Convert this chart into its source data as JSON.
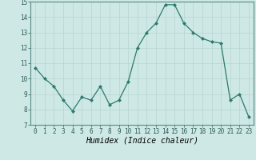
{
  "x": [
    0,
    1,
    2,
    3,
    4,
    5,
    6,
    7,
    8,
    9,
    10,
    11,
    12,
    13,
    14,
    15,
    16,
    17,
    18,
    19,
    20,
    21,
    22,
    23
  ],
  "y": [
    10.7,
    10.0,
    9.5,
    8.6,
    7.9,
    8.8,
    8.6,
    9.5,
    8.3,
    8.6,
    9.8,
    12.0,
    13.0,
    13.6,
    14.8,
    14.8,
    13.6,
    13.0,
    12.6,
    12.4,
    12.3,
    8.6,
    9.0,
    7.5
  ],
  "line_color": "#2d7a6e",
  "bg_color": "#cde8e5",
  "grid_color_major": "#b8d4d0",
  "grid_color_minor": "#c8e0dc",
  "xlabel": "Humidex (Indice chaleur)",
  "ylim": [
    7,
    15
  ],
  "xlim": [
    -0.5,
    23.5
  ],
  "yticks": [
    7,
    8,
    9,
    10,
    11,
    12,
    13,
    14,
    15
  ],
  "xticks": [
    0,
    1,
    2,
    3,
    4,
    5,
    6,
    7,
    8,
    9,
    10,
    11,
    12,
    13,
    14,
    15,
    16,
    17,
    18,
    19,
    20,
    21,
    22,
    23
  ],
  "tick_fontsize": 5.5,
  "xlabel_fontsize": 7.0,
  "marker": "D",
  "marker_size": 2.0,
  "linewidth": 0.9
}
